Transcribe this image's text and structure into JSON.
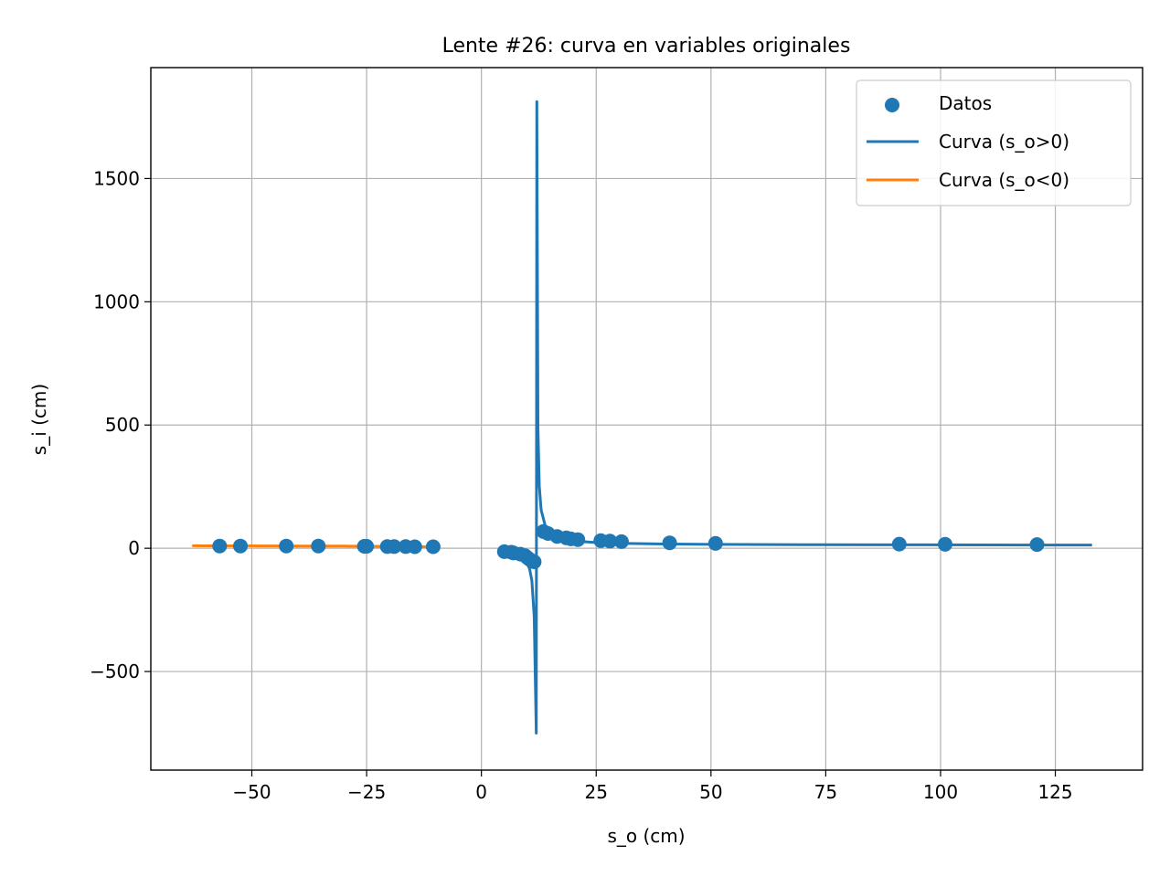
{
  "chart_data": {
    "type": "scatter",
    "title": "Lente #26: curva en variables originales",
    "xlabel": "s_o (cm)",
    "ylabel": "s_i (cm)",
    "xlim": [
      -72,
      144
    ],
    "ylim": [
      -900,
      1950
    ],
    "xticks": [
      -50,
      -25,
      0,
      25,
      50,
      75,
      100,
      125
    ],
    "xtick_labels": [
      "−50",
      "−25",
      "0",
      "25",
      "50",
      "75",
      "100",
      "125"
    ],
    "yticks": [
      -500,
      0,
      500,
      1000,
      1500
    ],
    "ytick_labels": [
      "−500",
      "0",
      "500",
      "1000",
      "1500"
    ],
    "grid": true,
    "legend_position": "top-right",
    "colors": {
      "datos": "#1f77b4",
      "curva_pos": "#1f77b4",
      "curva_neg": "#ff7f0e",
      "grid": "#b0b0b0"
    },
    "series": [
      {
        "name": "Datos",
        "kind": "scatter",
        "points": [
          [
            -57,
            9
          ],
          [
            -52.5,
            9
          ],
          [
            -42.5,
            9
          ],
          [
            -35.5,
            9
          ],
          [
            -25.5,
            8
          ],
          [
            -25,
            8
          ],
          [
            -20.5,
            7
          ],
          [
            -19,
            7
          ],
          [
            -16.5,
            7
          ],
          [
            -14.5,
            6
          ],
          [
            -10.5,
            6
          ],
          [
            5,
            -14
          ],
          [
            6.5,
            -16
          ],
          [
            7,
            -19
          ],
          [
            8.5,
            -24
          ],
          [
            9.5,
            -30
          ],
          [
            10,
            -38
          ],
          [
            10.5,
            -45
          ],
          [
            11,
            -52
          ],
          [
            11.5,
            -55
          ],
          [
            13.5,
            68
          ],
          [
            14.5,
            60
          ],
          [
            16.5,
            48
          ],
          [
            18.5,
            42
          ],
          [
            19.5,
            38
          ],
          [
            21,
            35
          ],
          [
            26,
            31
          ],
          [
            28,
            29
          ],
          [
            30.5,
            27
          ],
          [
            41,
            22
          ],
          [
            51,
            20
          ],
          [
            91,
            17
          ],
          [
            101,
            16
          ],
          [
            121,
            15
          ]
        ]
      },
      {
        "name": "Curva (s_o>0)",
        "kind": "line",
        "focal_length": 12
      },
      {
        "name": "Curva (s_o<0)",
        "kind": "line",
        "x_range": [
          -63,
          -10
        ]
      }
    ]
  }
}
